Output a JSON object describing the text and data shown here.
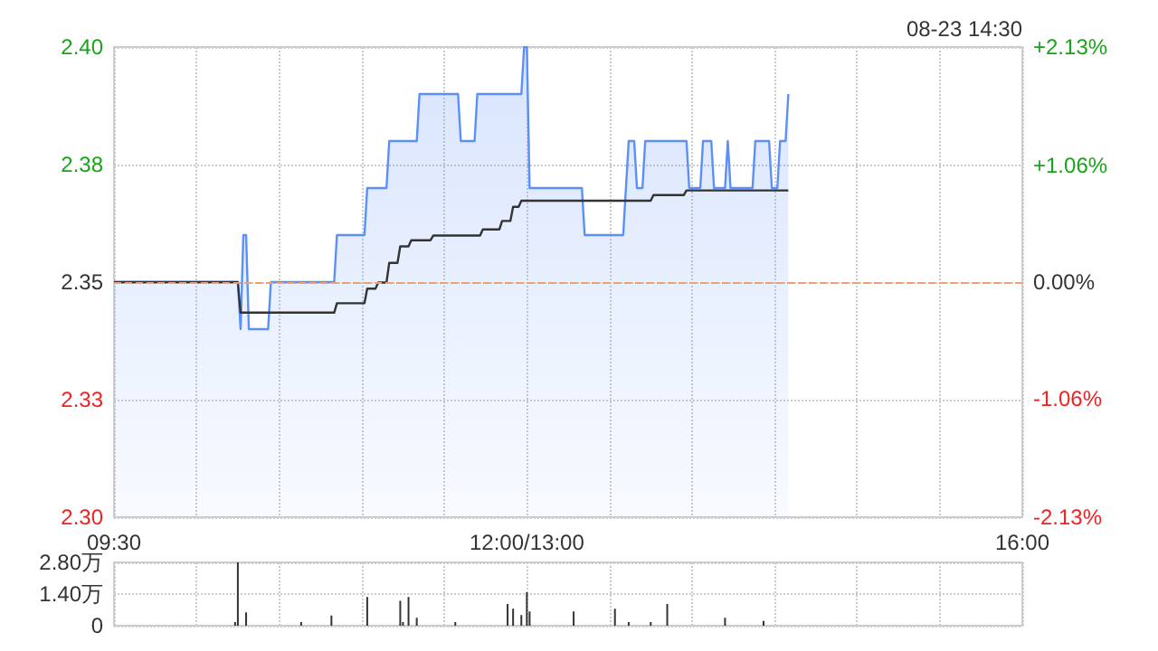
{
  "chart_data": [
    {
      "type": "line",
      "annotations": [
        "08-23 14:30"
      ],
      "categories": [
        "09:30",
        null,
        null,
        null,
        null,
        null,
        null,
        null,
        null,
        null,
        null,
        null,
        null,
        null,
        null,
        null,
        null,
        null,
        null,
        null,
        null,
        null,
        null,
        null,
        null,
        null,
        null,
        null,
        null,
        null,
        null,
        null,
        null,
        null,
        null,
        null,
        null,
        null,
        null,
        null,
        null,
        null,
        null,
        null,
        null,
        null,
        null,
        null,
        null,
        null,
        null,
        null,
        null,
        null,
        null,
        null,
        null,
        null,
        null,
        null,
        null,
        null,
        null,
        null,
        null,
        null,
        null,
        null,
        null,
        null,
        null,
        null,
        null,
        null,
        null,
        null,
        null,
        null,
        null,
        null,
        null,
        null,
        null,
        null,
        null,
        null,
        null,
        null,
        null,
        null,
        null,
        null,
        null,
        null,
        null,
        null,
        null,
        null,
        null,
        null,
        null,
        null,
        null,
        null,
        null,
        null,
        null,
        null,
        null,
        null,
        null,
        null,
        null,
        null,
        null,
        null,
        null,
        null,
        null,
        null,
        null,
        null,
        null,
        null,
        null,
        null,
        null,
        null,
        null,
        null,
        null,
        null,
        null,
        null,
        null,
        null,
        null,
        null,
        null,
        null,
        null,
        null,
        null,
        null,
        null,
        null,
        null,
        null,
        null,
        null,
        "12:00/13:00",
        null,
        null,
        null,
        null,
        null,
        null,
        null,
        null,
        null,
        null,
        null,
        null,
        null,
        null,
        null,
        null,
        null,
        null,
        null,
        null,
        null,
        null,
        null,
        null,
        null,
        null,
        null,
        null,
        null,
        null,
        null,
        null,
        null,
        null,
        null,
        null,
        null,
        null,
        null,
        null,
        null,
        null,
        null,
        null,
        null,
        null,
        null,
        null,
        null,
        null,
        null,
        null,
        null,
        null,
        null,
        null,
        null,
        null,
        null,
        null,
        null,
        null,
        null,
        null,
        null,
        null,
        null,
        null,
        null,
        null,
        null,
        null,
        null,
        null,
        null,
        null,
        null,
        null,
        null,
        null,
        null,
        null,
        null,
        null,
        null,
        null,
        null,
        null,
        null,
        null,
        null,
        null,
        null,
        null,
        null,
        null,
        null,
        null,
        null,
        null,
        null,
        null,
        null,
        null,
        null,
        null,
        null,
        null,
        null,
        null,
        null,
        null,
        null,
        null,
        null,
        null,
        null,
        null,
        null,
        null,
        null,
        null,
        null,
        null,
        null,
        null,
        null,
        null,
        null,
        null,
        null,
        null,
        null,
        null,
        null,
        null,
        null,
        null,
        null,
        null,
        null,
        null,
        null,
        null,
        null,
        null,
        null,
        null,
        null,
        null,
        null,
        null,
        null,
        null,
        null,
        null,
        null,
        null,
        null,
        null,
        null,
        null,
        null,
        null,
        null,
        null,
        null,
        null,
        null,
        null,
        null,
        null,
        null,
        null,
        null,
        null,
        null,
        null,
        null,
        "16:00"
      ],
      "ylim": [
        2.3,
        2.4
      ],
      "yticks": [
        {
          "value": 2.3,
          "label": "2.30"
        },
        {
          "value": 2.325,
          "label": "2.33"
        },
        {
          "value": 2.35,
          "label": "2.35"
        },
        {
          "value": 2.375,
          "label": "2.38"
        },
        {
          "value": 2.4,
          "label": "2.40"
        }
      ],
      "y2lim": [
        -2.13,
        2.13
      ],
      "y2ticks": [
        {
          "value": -2.13,
          "label": "-2.13%"
        },
        {
          "value": -1.06,
          "label": "-1.06%"
        },
        {
          "value": 0,
          "label": "0.00%"
        },
        {
          "value": 1.06,
          "label": "+1.06%"
        },
        {
          "value": 2.13,
          "label": "+2.13%"
        }
      ],
      "grid": true,
      "marker": "none",
      "ref_lines": [
        {
          "axis": "y",
          "value": 2.35,
          "label": null,
          "color": "#f0a070",
          "line_style": "dashed"
        }
      ],
      "series": [
        {
          "type": "area",
          "color": "#5b8ff9",
          "values": [
            2.35,
            2.35,
            2.35,
            2.35,
            2.35,
            2.35,
            2.35,
            2.35,
            2.35,
            2.35,
            2.35,
            2.35,
            2.35,
            2.35,
            2.35,
            2.35,
            2.35,
            2.35,
            2.35,
            2.35,
            2.35,
            2.35,
            2.35,
            2.35,
            2.35,
            2.35,
            2.35,
            2.35,
            2.35,
            2.35,
            2.35,
            2.35,
            2.35,
            2.35,
            2.35,
            2.35,
            2.35,
            2.35,
            2.35,
            2.35,
            2.35,
            2.35,
            2.35,
            2.35,
            2.35,
            2.35,
            2.34,
            2.36,
            2.36,
            2.34,
            2.34,
            2.34,
            2.34,
            2.34,
            2.34,
            2.34,
            2.34,
            2.35,
            2.35,
            2.35,
            2.35,
            2.35,
            2.35,
            2.35,
            2.35,
            2.35,
            2.35,
            2.35,
            2.35,
            2.35,
            2.35,
            2.35,
            2.35,
            2.35,
            2.35,
            2.35,
            2.35,
            2.35,
            2.35,
            2.35,
            2.35,
            2.36,
            2.36,
            2.36,
            2.36,
            2.36,
            2.36,
            2.36,
            2.36,
            2.36,
            2.36,
            2.36,
            2.37,
            2.37,
            2.37,
            2.37,
            2.37,
            2.37,
            2.37,
            2.37,
            2.38,
            2.38,
            2.38,
            2.38,
            2.38,
            2.38,
            2.38,
            2.38,
            2.38,
            2.38,
            2.38,
            2.39,
            2.39,
            2.39,
            2.39,
            2.39,
            2.39,
            2.39,
            2.39,
            2.39,
            2.39,
            2.39,
            2.39,
            2.39,
            2.39,
            2.39,
            2.38,
            2.38,
            2.38,
            2.38,
            2.38,
            2.38,
            2.39,
            2.39,
            2.39,
            2.39,
            2.39,
            2.39,
            2.39,
            2.39,
            2.39,
            2.39,
            2.39,
            2.39,
            2.39,
            2.39,
            2.39,
            2.39,
            2.39,
            2.4,
            2.4,
            2.37,
            2.37,
            2.37,
            2.37,
            2.37,
            2.37,
            2.37,
            2.37,
            2.37,
            2.37,
            2.37,
            2.37,
            2.37,
            2.37,
            2.37,
            2.37,
            2.37,
            2.37,
            2.37,
            2.37,
            2.36,
            2.36,
            2.36,
            2.36,
            2.36,
            2.36,
            2.36,
            2.36,
            2.36,
            2.36,
            2.36,
            2.36,
            2.36,
            2.36,
            2.36,
            2.37,
            2.38,
            2.38,
            2.38,
            2.37,
            2.37,
            2.37,
            2.38,
            2.38,
            2.38,
            2.38,
            2.38,
            2.38,
            2.38,
            2.38,
            2.38,
            2.38,
            2.38,
            2.38,
            2.38,
            2.38,
            2.38,
            2.38,
            2.37,
            2.37,
            2.37,
            2.37,
            2.37,
            2.38,
            2.38,
            2.38,
            2.38,
            2.37,
            2.37,
            2.37,
            2.37,
            2.37,
            2.38,
            2.37,
            2.37,
            2.37,
            2.37,
            2.37,
            2.37,
            2.37,
            2.37,
            2.37,
            2.38,
            2.38,
            2.38,
            2.38,
            2.38,
            2.38,
            2.37,
            2.37,
            2.37,
            2.38,
            2.38,
            2.38,
            2.39,
            null,
            null,
            null,
            null,
            null,
            null,
            null,
            null,
            null,
            null,
            null,
            null,
            null,
            null,
            null,
            null,
            null,
            null,
            null,
            null,
            null,
            null,
            null,
            null,
            null,
            null,
            null,
            null,
            null,
            null,
            null,
            null,
            null,
            null,
            null,
            null,
            null,
            null,
            null,
            null,
            null,
            null,
            null,
            null,
            null,
            null,
            null,
            null,
            null,
            null,
            null,
            null,
            null,
            null,
            null,
            null,
            null,
            null,
            null,
            null,
            null,
            null,
            null,
            null,
            null,
            null,
            null,
            null,
            null,
            null,
            null,
            null,
            null,
            null,
            null,
            null,
            null,
            null,
            null,
            null,
            null,
            null,
            null,
            null,
            null
          ]
        },
        {
          "color": "#333333",
          "values": [
            2.35,
            2.35,
            2.35,
            2.35,
            2.35,
            2.35,
            2.35,
            2.35,
            2.35,
            2.35,
            2.35,
            2.35,
            2.35,
            2.35,
            2.35,
            2.35,
            2.35,
            2.35,
            2.35,
            2.35,
            2.35,
            2.35,
            2.35,
            2.35,
            2.35,
            2.35,
            2.35,
            2.35,
            2.35,
            2.35,
            2.35,
            2.35,
            2.35,
            2.35,
            2.35,
            2.35,
            2.35,
            2.35,
            2.35,
            2.35,
            2.35,
            2.35,
            2.35,
            2.35,
            2.35,
            2.35,
            2.3435,
            2.3435,
            2.3435,
            2.3435,
            2.3435,
            2.3435,
            2.3435,
            2.3435,
            2.3435,
            2.3435,
            2.3435,
            2.3435,
            2.3435,
            2.3435,
            2.3435,
            2.3435,
            2.3435,
            2.3435,
            2.3435,
            2.3435,
            2.3435,
            2.3435,
            2.3435,
            2.3435,
            2.3435,
            2.3435,
            2.3435,
            2.3435,
            2.3435,
            2.3435,
            2.3435,
            2.3435,
            2.3435,
            2.3435,
            2.3435,
            2.3455,
            2.3455,
            2.3455,
            2.3455,
            2.3455,
            2.3455,
            2.3455,
            2.3455,
            2.3455,
            2.3455,
            2.3455,
            2.3486,
            2.3486,
            2.3486,
            2.3486,
            2.3499,
            2.3499,
            2.3499,
            2.3499,
            2.3541,
            2.3541,
            2.3541,
            2.3541,
            2.3576,
            2.3576,
            2.3576,
            2.3576,
            2.3589,
            2.3589,
            2.3589,
            2.3589,
            2.3589,
            2.3589,
            2.3589,
            2.3589,
            2.3599,
            2.3599,
            2.3599,
            2.3599,
            2.3599,
            2.3599,
            2.3599,
            2.3599,
            2.3599,
            2.3599,
            2.3599,
            2.3599,
            2.3599,
            2.3599,
            2.3599,
            2.3599,
            2.3599,
            2.3599,
            2.3612,
            2.3612,
            2.3612,
            2.3612,
            2.3612,
            2.3612,
            2.3612,
            2.363,
            2.363,
            2.363,
            2.363,
            2.366,
            2.366,
            2.366,
            2.3673,
            2.3673,
            2.3673,
            2.3673,
            2.3673,
            2.3673,
            2.3673,
            2.3673,
            2.3673,
            2.3673,
            2.3673,
            2.3673,
            2.3673,
            2.3673,
            2.3673,
            2.3673,
            2.3673,
            2.3673,
            2.3673,
            2.3673,
            2.3673,
            2.3673,
            2.3673,
            2.3673,
            2.3673,
            2.3673,
            2.3673,
            2.3673,
            2.3673,
            2.3673,
            2.3673,
            2.3673,
            2.3673,
            2.3673,
            2.3673,
            2.3673,
            2.3673,
            2.3673,
            2.3673,
            2.3673,
            2.3673,
            2.3673,
            2.3673,
            2.3673,
            2.3673,
            2.3673,
            2.3673,
            2.3673,
            2.3685,
            2.3685,
            2.3685,
            2.3685,
            2.3685,
            2.3685,
            2.3685,
            2.3685,
            2.3685,
            2.3685,
            2.3685,
            2.3685,
            2.3695,
            2.3695,
            2.3695,
            2.3695,
            2.3695,
            2.3695,
            2.3695,
            2.3695,
            2.3695,
            2.3695,
            2.3695,
            2.3695,
            2.3695,
            2.3695,
            2.3695,
            2.3695,
            2.3695,
            2.3695,
            2.3695,
            2.3695,
            2.3695,
            2.3695,
            2.3695,
            2.3695,
            2.3695,
            2.3695,
            2.3695,
            2.3695,
            2.3695,
            2.3695,
            2.3695,
            2.3695,
            2.3695,
            2.3695,
            2.3695,
            2.3695,
            2.3695,
            2.3695,
            null,
            null,
            null,
            null,
            null,
            null,
            null,
            null,
            null,
            null,
            null,
            null,
            null,
            null,
            null,
            null,
            null,
            null,
            null,
            null,
            null,
            null,
            null,
            null,
            null,
            null,
            null,
            null,
            null,
            null,
            null,
            null,
            null,
            null,
            null,
            null,
            null,
            null,
            null,
            null,
            null,
            null,
            null,
            null,
            null,
            null,
            null,
            null,
            null,
            null,
            null,
            null,
            null,
            null,
            null,
            null,
            null,
            null,
            null,
            null,
            null,
            null,
            null,
            null,
            null,
            null,
            null,
            null,
            null,
            null,
            null,
            null,
            null,
            null,
            null,
            null,
            null,
            null,
            null,
            null,
            null,
            null,
            null,
            null,
            null
          ]
        }
      ]
    },
    {
      "type": "bar",
      "tick_labels": "y",
      "grid": true,
      "categories": [
        null,
        null,
        null,
        null,
        null,
        null,
        null,
        null,
        null,
        null,
        null,
        null,
        null,
        null,
        null,
        null,
        null,
        null,
        null,
        null,
        null,
        null,
        null,
        null,
        null,
        null,
        null,
        null,
        null,
        null,
        null,
        null,
        null,
        null,
        null,
        null,
        null,
        null,
        null,
        null,
        null,
        null,
        null,
        null,
        null,
        null,
        null,
        null,
        null,
        null,
        null,
        null,
        null,
        null,
        null,
        null,
        null,
        null,
        null,
        null,
        null,
        null,
        null,
        null,
        null,
        null,
        null,
        null,
        null,
        null,
        null,
        null,
        null,
        null,
        null,
        null,
        null,
        null,
        null,
        null,
        null,
        null,
        null,
        null,
        null,
        null,
        null,
        null,
        null,
        null,
        null,
        null,
        null,
        null,
        null,
        null,
        null,
        null,
        null,
        null,
        null,
        null,
        null,
        null,
        null,
        null,
        null,
        null,
        null,
        null,
        null,
        null,
        null,
        null,
        null,
        null,
        null,
        null,
        null,
        null,
        null,
        null,
        null,
        null,
        null,
        null,
        null,
        null,
        null,
        null,
        null,
        null,
        null,
        null,
        null,
        null,
        null,
        null,
        null,
        null,
        null,
        null,
        null,
        null,
        null,
        null,
        null,
        null,
        null,
        null,
        null,
        null,
        null,
        null,
        null,
        null,
        null,
        null,
        null,
        null,
        null,
        null,
        null,
        null,
        null,
        null,
        null,
        null,
        null,
        null,
        null,
        null,
        null,
        null,
        null,
        null,
        null,
        null,
        null,
        null,
        null,
        null,
        null,
        null,
        null,
        null,
        null,
        null,
        null,
        null,
        null,
        null,
        null,
        null,
        null,
        null,
        null,
        null,
        null,
        null,
        null,
        null,
        null,
        null,
        null,
        null,
        null,
        null,
        null,
        null,
        null,
        null,
        null,
        null,
        null,
        null,
        null,
        null,
        null,
        null,
        null,
        null,
        null,
        null,
        null,
        null,
        null,
        null,
        null,
        null,
        null,
        null,
        null,
        null,
        null,
        null,
        null,
        null,
        null,
        null,
        null,
        null,
        null,
        null,
        null,
        null,
        null,
        null,
        null,
        null,
        null,
        null,
        null,
        null,
        null,
        null,
        null,
        null,
        null,
        null,
        null,
        null,
        null,
        null,
        null,
        null,
        null,
        null,
        null,
        null,
        null,
        null,
        null,
        null,
        null,
        null,
        null,
        null,
        null,
        null,
        null,
        null,
        null,
        null,
        null,
        null,
        null,
        null,
        null,
        null,
        null,
        null,
        null,
        null,
        null,
        null,
        null,
        null,
        null,
        null,
        null,
        null,
        null,
        null,
        null,
        null,
        null,
        null,
        null,
        null,
        null,
        null,
        null,
        null,
        null,
        null,
        null,
        null,
        null,
        null,
        null,
        null,
        null,
        null,
        null,
        null,
        null,
        null,
        null,
        null,
        null
      ],
      "ylim": [
        0,
        2.8
      ],
      "yticks": [
        0,
        {
          "value": 1.4,
          "label": "1.40万"
        },
        {
          "value": 2.8,
          "label": "2.80万"
        }
      ],
      "series": [
        {
          "color": "#333333",
          "values": [
            null,
            null,
            null,
            null,
            null,
            null,
            null,
            null,
            null,
            null,
            null,
            null,
            null,
            null,
            null,
            null,
            null,
            null,
            null,
            null,
            null,
            null,
            null,
            null,
            null,
            null,
            null,
            null,
            null,
            null,
            null,
            null,
            null,
            null,
            null,
            null,
            null,
            null,
            null,
            null,
            null,
            null,
            null,
            null,
            0.16,
            2.8,
            null,
            null,
            0.59,
            null,
            null,
            null,
            null,
            null,
            null,
            null,
            null,
            null,
            null,
            null,
            null,
            null,
            null,
            null,
            null,
            null,
            null,
            null,
            0.16,
            null,
            null,
            null,
            null,
            null,
            null,
            null,
            null,
            null,
            null,
            0.45,
            null,
            null,
            null,
            null,
            null,
            null,
            null,
            null,
            null,
            null,
            null,
            null,
            1.27,
            null,
            null,
            null,
            null,
            null,
            null,
            null,
            null,
            null,
            null,
            null,
            1.1,
            0.16,
            null,
            1.27,
            null,
            null,
            0.35,
            null,
            null,
            null,
            null,
            null,
            null,
            null,
            null,
            null,
            null,
            null,
            null,
            null,
            0.16,
            null,
            null,
            null,
            null,
            null,
            null,
            null,
            null,
            null,
            null,
            null,
            null,
            null,
            null,
            null,
            null,
            null,
            null,
            0.96,
            null,
            0.75,
            null,
            null,
            0.47,
            null,
            1.48,
            0.63,
            null,
            null,
            null,
            null,
            null,
            null,
            null,
            null,
            null,
            null,
            null,
            null,
            null,
            null,
            null,
            0.63,
            null,
            null,
            null,
            null,
            null,
            null,
            null,
            null,
            null,
            null,
            null,
            null,
            null,
            null,
            0.75,
            null,
            null,
            null,
            null,
            0.16,
            null,
            null,
            null,
            null,
            null,
            null,
            null,
            0.16,
            null,
            null,
            null,
            null,
            null,
            0.96,
            null,
            null,
            null,
            null,
            null,
            null,
            null,
            null,
            null,
            null,
            null,
            null,
            null,
            null,
            null,
            null,
            null,
            null,
            null,
            null,
            0.35,
            null,
            null,
            null,
            null,
            null,
            null,
            null,
            null,
            null,
            null,
            null,
            null,
            null,
            0.21,
            null,
            null,
            null,
            null,
            null,
            null,
            null,
            null,
            null,
            null,
            null,
            null,
            null,
            null,
            null,
            null,
            null,
            null,
            null,
            null,
            null,
            null,
            null,
            null,
            null,
            null,
            null,
            null,
            null,
            null,
            null,
            null,
            null,
            null,
            null,
            null,
            null,
            null,
            null,
            null,
            null,
            null,
            null,
            null,
            null,
            null,
            null,
            null,
            null,
            null,
            null,
            null,
            null,
            null,
            null,
            null,
            null,
            null,
            null,
            null,
            null,
            null,
            null,
            null,
            null,
            null,
            null,
            null,
            null,
            null,
            null,
            null,
            null,
            null,
            null,
            null,
            null,
            null,
            null,
            null,
            null,
            null,
            null,
            null,
            null,
            null,
            null,
            null,
            null,
            null,
            null,
            null,
            null,
            null
          ]
        }
      ]
    }
  ]
}
